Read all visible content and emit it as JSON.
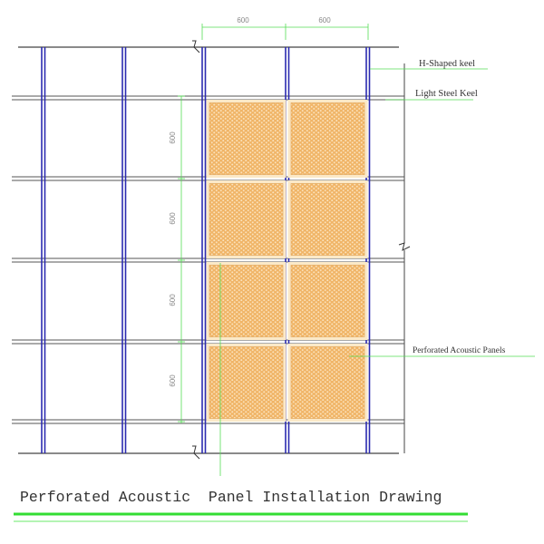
{
  "dimensions": {
    "horizontal": [
      "600",
      "600"
    ],
    "vertical": [
      "600",
      "600",
      "600",
      "600"
    ]
  },
  "labels": {
    "h_keel": "H-Shaped keel",
    "light_keel": "Light Steel Keel",
    "panels": "Perforated Acoustic  Panels"
  },
  "title": "Perforated Acoustic  Panel Installation Drawing",
  "colors": {
    "keel": "#2b2bb0",
    "panel_fill": "#f2b668",
    "panel_border": "#fbe9c8",
    "dimension": "#55dd55",
    "title_rule": "#33dd33"
  },
  "grid": {
    "panel_columns": 2,
    "panel_rows": 4
  }
}
